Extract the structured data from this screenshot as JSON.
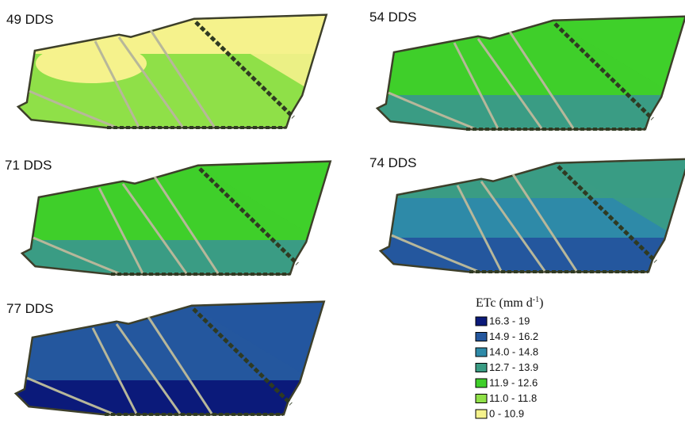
{
  "panels": [
    {
      "label": "49 DDS"
    },
    {
      "label": "54 DDS"
    },
    {
      "label": "71 DDS"
    },
    {
      "label": "74 DDS"
    },
    {
      "label": "77 DDS"
    }
  ],
  "legend": {
    "title": [
      "ETc (mm d",
      "-1",
      ")"
    ],
    "items": [
      {
        "label": "16.3 - 19",
        "color": "#0b1a7a"
      },
      {
        "label": "14.9 - 16.2",
        "color": "#24579e"
      },
      {
        "label": "14.0 - 14.8",
        "color": "#2e8aa8"
      },
      {
        "label": "12.7 - 13.9",
        "color": "#3a9c84"
      },
      {
        "label": "11.9 - 12.6",
        "color": "#3fcf2a"
      },
      {
        "label": "11.0 - 11.8",
        "color": "#8fe048"
      },
      {
        "label": "0 - 10.9",
        "color": "#f5f28c"
      }
    ]
  }
}
